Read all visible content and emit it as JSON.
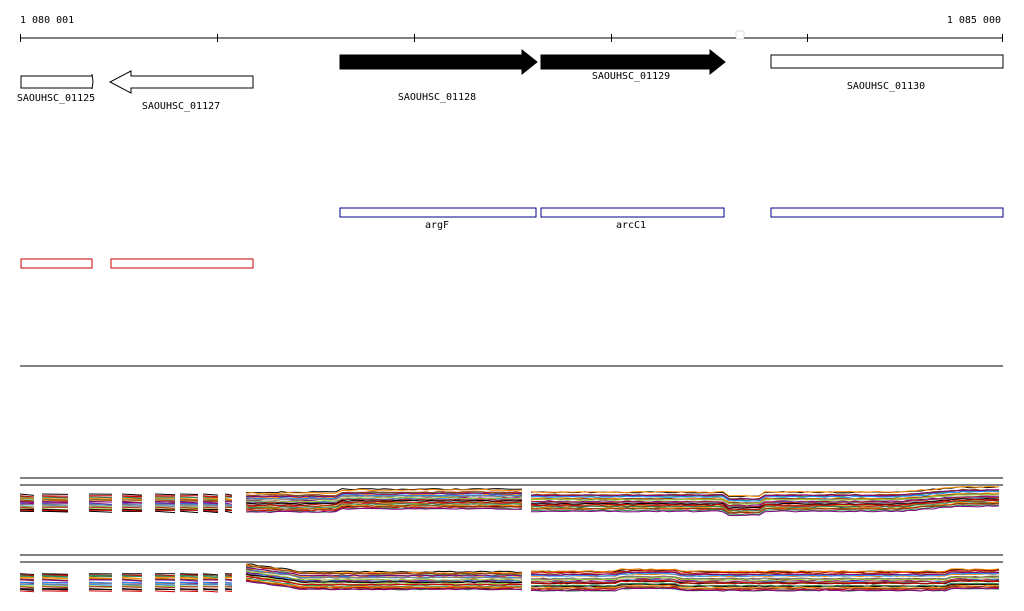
{
  "ruler": {
    "start_label": "1 080 001",
    "end_label": "1 085 000"
  },
  "genes": [
    {
      "label": "SAOUHSC_01125",
      "strand": "+",
      "style": "outline"
    },
    {
      "label": "SAOUHSC_01127",
      "strand": "-",
      "style": "outline"
    },
    {
      "label": "SAOUHSC_01128",
      "strand": "+",
      "style": "filled"
    },
    {
      "label": "SAOUHSC_01129",
      "strand": "+",
      "style": "filled"
    },
    {
      "label": "SAOUHSC_01130",
      "strand": "+",
      "style": "outline"
    }
  ],
  "blue_features": [
    {
      "label": "argF"
    },
    {
      "label": "arcC1"
    },
    {
      "label": ""
    }
  ],
  "red_features": [
    {
      "label": ""
    },
    {
      "label": ""
    }
  ],
  "colors": {
    "gene_filled": "#000000",
    "blue_feature": "#00008b",
    "red_feature": "#cc0000",
    "track_palette": [
      "#000000",
      "#cc0000",
      "#2e8b57",
      "#ff8c00",
      "#8b4513",
      "#800080",
      "#1e90ff",
      "#808080",
      "#9acd32",
      "#b22222"
    ]
  }
}
